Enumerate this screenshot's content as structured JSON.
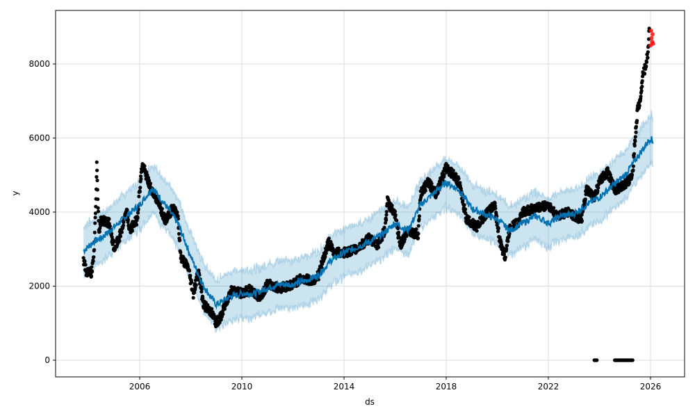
{
  "chart_data": {
    "type": "line",
    "title": "",
    "xlabel": "ds",
    "ylabel": "y",
    "xlim": [
      2002.9,
      2027.2
    ],
    "ylim": [
      -450,
      9250
    ],
    "grid": true,
    "x_ticks": [
      {
        "v": 2006,
        "label": "2006"
      },
      {
        "v": 2010,
        "label": "2010"
      },
      {
        "v": 2014,
        "label": "2014"
      },
      {
        "v": 2018,
        "label": "2018"
      },
      {
        "v": 2022,
        "label": "2022"
      },
      {
        "v": 2026,
        "label": "2026"
      }
    ],
    "y_ticks": [
      {
        "v": 0,
        "label": "0"
      },
      {
        "v": 2000,
        "label": "2000"
      },
      {
        "v": 4000,
        "label": "4000"
      },
      {
        "v": 6000,
        "label": "6000"
      },
      {
        "v": 8000,
        "label": "8000"
      }
    ],
    "colors": {
      "forecast": "#0072B2",
      "band": "#0072B2",
      "actual": "#000000",
      "future_actual": "#ff0000"
    },
    "uncertainty_halfwidth": 650,
    "forecast": [
      [
        2003.8,
        2950
      ],
      [
        2004.2,
        3200
      ],
      [
        2004.5,
        3300
      ],
      [
        2005,
        3600
      ],
      [
        2005.5,
        3900
      ],
      [
        2006,
        4200
      ],
      [
        2006.5,
        4650
      ],
      [
        2007,
        4200
      ],
      [
        2007.5,
        3700
      ],
      [
        2008,
        2800
      ],
      [
        2008.5,
        2000
      ],
      [
        2009,
        1500
      ],
      [
        2009.5,
        1700
      ],
      [
        2010,
        1800
      ],
      [
        2010.5,
        1800
      ],
      [
        2011,
        1950
      ],
      [
        2011.5,
        2050
      ],
      [
        2012,
        2050
      ],
      [
        2012.5,
        2150
      ],
      [
        2013,
        2300
      ],
      [
        2013.5,
        2700
      ],
      [
        2014,
        2900
      ],
      [
        2014.5,
        3050
      ],
      [
        2015,
        3200
      ],
      [
        2015.5,
        3400
      ],
      [
        2016,
        3700
      ],
      [
        2016.5,
        3500
      ],
      [
        2017,
        4200
      ],
      [
        2017.5,
        4500
      ],
      [
        2018,
        4800
      ],
      [
        2018.5,
        4600
      ],
      [
        2019,
        4100
      ],
      [
        2019.5,
        3950
      ],
      [
        2020,
        3800
      ],
      [
        2020.5,
        3500
      ],
      [
        2021,
        3700
      ],
      [
        2021.5,
        3900
      ],
      [
        2022,
        3700
      ],
      [
        2022.5,
        3900
      ],
      [
        2023,
        3950
      ],
      [
        2023.5,
        4200
      ],
      [
        2024,
        4400
      ],
      [
        2024.5,
        4700
      ],
      [
        2025,
        5000
      ],
      [
        2025.5,
        5500
      ],
      [
        2026,
        6000
      ],
      [
        2026.1,
        5900
      ]
    ],
    "actual": [
      [
        2003.8,
        2700
      ],
      [
        2003.9,
        2400
      ],
      [
        2004.1,
        2350
      ],
      [
        2004.2,
        2700
      ],
      [
        2004.3,
        4500
      ],
      [
        2004.32,
        5400
      ],
      [
        2004.4,
        3500
      ],
      [
        2004.5,
        3800
      ],
      [
        2004.8,
        3700
      ],
      [
        2005.0,
        3000
      ],
      [
        2005.2,
        3300
      ],
      [
        2005.5,
        4000
      ],
      [
        2005.6,
        3500
      ],
      [
        2005.9,
        3800
      ],
      [
        2006.0,
        4600
      ],
      [
        2006.1,
        5300
      ],
      [
        2006.4,
        4700
      ],
      [
        2006.7,
        4300
      ],
      [
        2007.0,
        3800
      ],
      [
        2007.3,
        4100
      ],
      [
        2007.5,
        3900
      ],
      [
        2007.6,
        2800
      ],
      [
        2007.9,
        2500
      ],
      [
        2008.1,
        1800
      ],
      [
        2008.3,
        2400
      ],
      [
        2008.5,
        1500
      ],
      [
        2008.8,
        1300
      ],
      [
        2009.0,
        1000
      ],
      [
        2009.2,
        1200
      ],
      [
        2009.4,
        1600
      ],
      [
        2009.6,
        1900
      ],
      [
        2010.0,
        1800
      ],
      [
        2010.3,
        1900
      ],
      [
        2010.7,
        1700
      ],
      [
        2011.0,
        2050
      ],
      [
        2011.5,
        1950
      ],
      [
        2012.0,
        2050
      ],
      [
        2012.3,
        2200
      ],
      [
        2012.8,
        2150
      ],
      [
        2013.0,
        2300
      ],
      [
        2013.4,
        3200
      ],
      [
        2013.6,
        2900
      ],
      [
        2014.0,
        2900
      ],
      [
        2014.5,
        3000
      ],
      [
        2015.0,
        3300
      ],
      [
        2015.3,
        3100
      ],
      [
        2015.6,
        3500
      ],
      [
        2015.7,
        4300
      ],
      [
        2016.0,
        3900
      ],
      [
        2016.2,
        3100
      ],
      [
        2016.5,
        3500
      ],
      [
        2016.9,
        3400
      ],
      [
        2017.0,
        4500
      ],
      [
        2017.3,
        4800
      ],
      [
        2017.6,
        4500
      ],
      [
        2018.0,
        5200
      ],
      [
        2018.3,
        5000
      ],
      [
        2018.5,
        4800
      ],
      [
        2018.8,
        3800
      ],
      [
        2019.2,
        3600
      ],
      [
        2019.5,
        3900
      ],
      [
        2019.9,
        4200
      ],
      [
        2020.1,
        3200
      ],
      [
        2020.3,
        2800
      ],
      [
        2020.5,
        3600
      ],
      [
        2020.8,
        3700
      ],
      [
        2021.0,
        4000
      ],
      [
        2021.5,
        4100
      ],
      [
        2022.0,
        4200
      ],
      [
        2022.3,
        3900
      ],
      [
        2022.8,
        4000
      ],
      [
        2023.0,
        3900
      ],
      [
        2023.3,
        3800
      ],
      [
        2023.5,
        4600
      ],
      [
        2023.8,
        4400
      ],
      [
        2024.0,
        4800
      ],
      [
        2024.3,
        5100
      ],
      [
        2024.6,
        4600
      ],
      [
        2024.9,
        4700
      ],
      [
        2025.2,
        4900
      ],
      [
        2025.3,
        5000
      ],
      [
        2025.35,
        5600
      ],
      [
        2025.5,
        6800
      ],
      [
        2025.6,
        7000
      ],
      [
        2025.7,
        7700
      ],
      [
        2025.8,
        7900
      ],
      [
        2025.9,
        8300
      ],
      [
        2025.95,
        9000
      ]
    ],
    "zero_actual_ranges": [
      [
        2023.8,
        2023.9
      ],
      [
        2024.6,
        2025.3
      ]
    ],
    "future_actual": [
      [
        2026.0,
        8500
      ],
      [
        2026.02,
        8900
      ],
      [
        2026.04,
        8700
      ],
      [
        2026.06,
        8600
      ],
      [
        2026.08,
        8800
      ],
      [
        2026.1,
        8550
      ]
    ]
  }
}
